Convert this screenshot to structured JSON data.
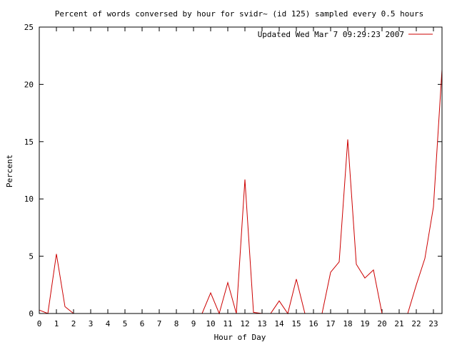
{
  "chart_data": {
    "type": "line",
    "title": "Percent of words conversed by hour for svidr~ (id 125) sampled every 0.5 hours",
    "xlabel": "Hour of Day",
    "ylabel": "Percent",
    "xlim": [
      0,
      23.5
    ],
    "ylim": [
      0,
      25
    ],
    "x_ticks": [
      0,
      1,
      2,
      3,
      4,
      5,
      6,
      7,
      8,
      9,
      10,
      11,
      12,
      13,
      14,
      15,
      16,
      17,
      18,
      19,
      20,
      21,
      22,
      23
    ],
    "y_ticks": [
      0,
      5,
      10,
      15,
      20,
      25
    ],
    "grid": false,
    "legend_position": "top-right",
    "series": [
      {
        "name": "Updated Wed Mar  7 09:29:23 2007",
        "color": "#cc0000",
        "x": [
          0,
          0.5,
          1,
          1.5,
          2,
          2.5,
          3,
          3.5,
          4,
          4.5,
          5,
          5.5,
          6,
          6.5,
          7,
          7.5,
          8,
          8.5,
          9,
          9.5,
          10,
          10.5,
          11,
          11.5,
          12,
          12.5,
          13,
          13.5,
          14,
          14.5,
          15,
          15.5,
          16,
          16.5,
          17,
          17.5,
          18,
          18.5,
          19,
          19.5,
          20,
          20.5,
          21,
          21.5,
          22,
          22.5,
          23,
          23.5
        ],
        "values": [
          0.3,
          0,
          5.2,
          0.6,
          0,
          0,
          0,
          0,
          0,
          0,
          0,
          0,
          0,
          0,
          0,
          0,
          0,
          0,
          0,
          0,
          1.8,
          0,
          2.7,
          0,
          11.7,
          0.1,
          0,
          0,
          1.1,
          0,
          3.0,
          0,
          0,
          0,
          3.6,
          4.5,
          15.2,
          4.3,
          3.1,
          3.8,
          0,
          0,
          0,
          0,
          2.5,
          4.8,
          9.3,
          21.3
        ]
      }
    ]
  }
}
